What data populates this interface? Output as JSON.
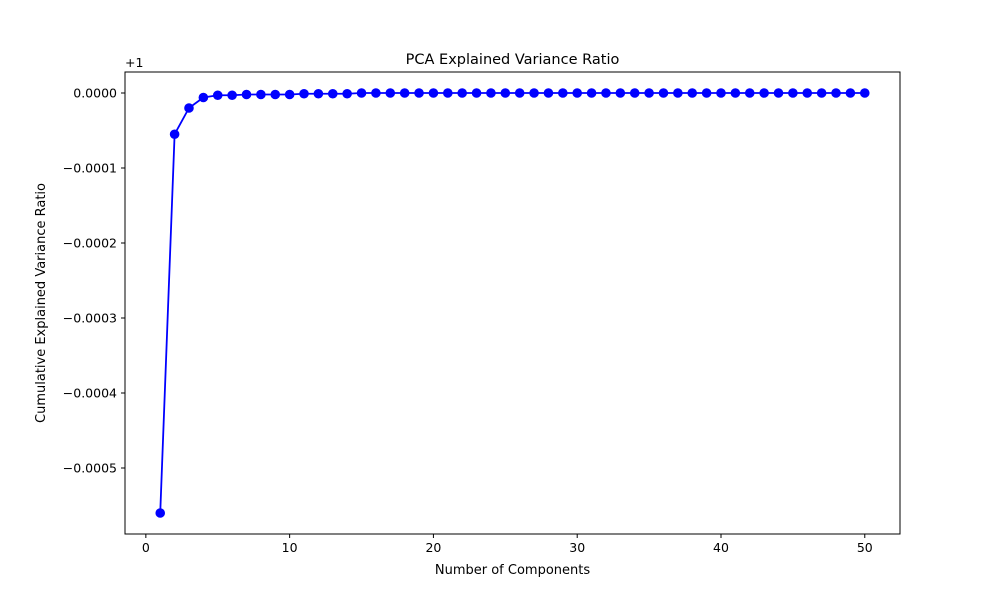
{
  "chart_data": {
    "type": "line",
    "title": "PCA Explained Variance Ratio",
    "xlabel": "Number of Components",
    "ylabel": "Cumulative Explained Variance Ratio",
    "offset_label": "+1",
    "xlim": [
      -1.45,
      52.45
    ],
    "ylim": [
      -0.000588,
      2.8e-05
    ],
    "xticks": [
      0,
      10,
      20,
      30,
      40,
      50
    ],
    "xtick_labels": [
      "0",
      "10",
      "20",
      "30",
      "40",
      "50"
    ],
    "yticks": [
      0.0,
      -0.0001,
      -0.0002,
      -0.0003,
      -0.0004,
      -0.0005
    ],
    "ytick_labels": [
      "0.0000",
      "−0.0001",
      "−0.0002",
      "−0.0003",
      "−0.0004",
      "−0.0005"
    ],
    "grid": false,
    "legend": "none",
    "colors": {
      "series": "#0000ff",
      "axes": "#000000"
    },
    "series": [
      {
        "marker": "circle",
        "x": [
          1,
          2,
          3,
          4,
          5,
          6,
          7,
          8,
          9,
          10,
          11,
          12,
          13,
          14,
          15,
          16,
          17,
          18,
          19,
          20,
          21,
          22,
          23,
          24,
          25,
          26,
          27,
          28,
          29,
          30,
          31,
          32,
          33,
          34,
          35,
          36,
          37,
          38,
          39,
          40,
          41,
          42,
          43,
          44,
          45,
          46,
          47,
          48,
          49,
          50
        ],
        "values": [
          -0.00056,
          -5.5e-05,
          -2e-05,
          -6e-06,
          -3e-06,
          -3e-06,
          -2e-06,
          -2e-06,
          -2e-06,
          -2e-06,
          -1e-06,
          -1e-06,
          -1e-06,
          -1e-06,
          0,
          0,
          0,
          0,
          0,
          0,
          0,
          0,
          0,
          0,
          0,
          0,
          0,
          0,
          0,
          0,
          0,
          0,
          0,
          0,
          0,
          0,
          0,
          0,
          0,
          0,
          0,
          0,
          0,
          0,
          0,
          0,
          0,
          0,
          0,
          0
        ]
      }
    ]
  }
}
